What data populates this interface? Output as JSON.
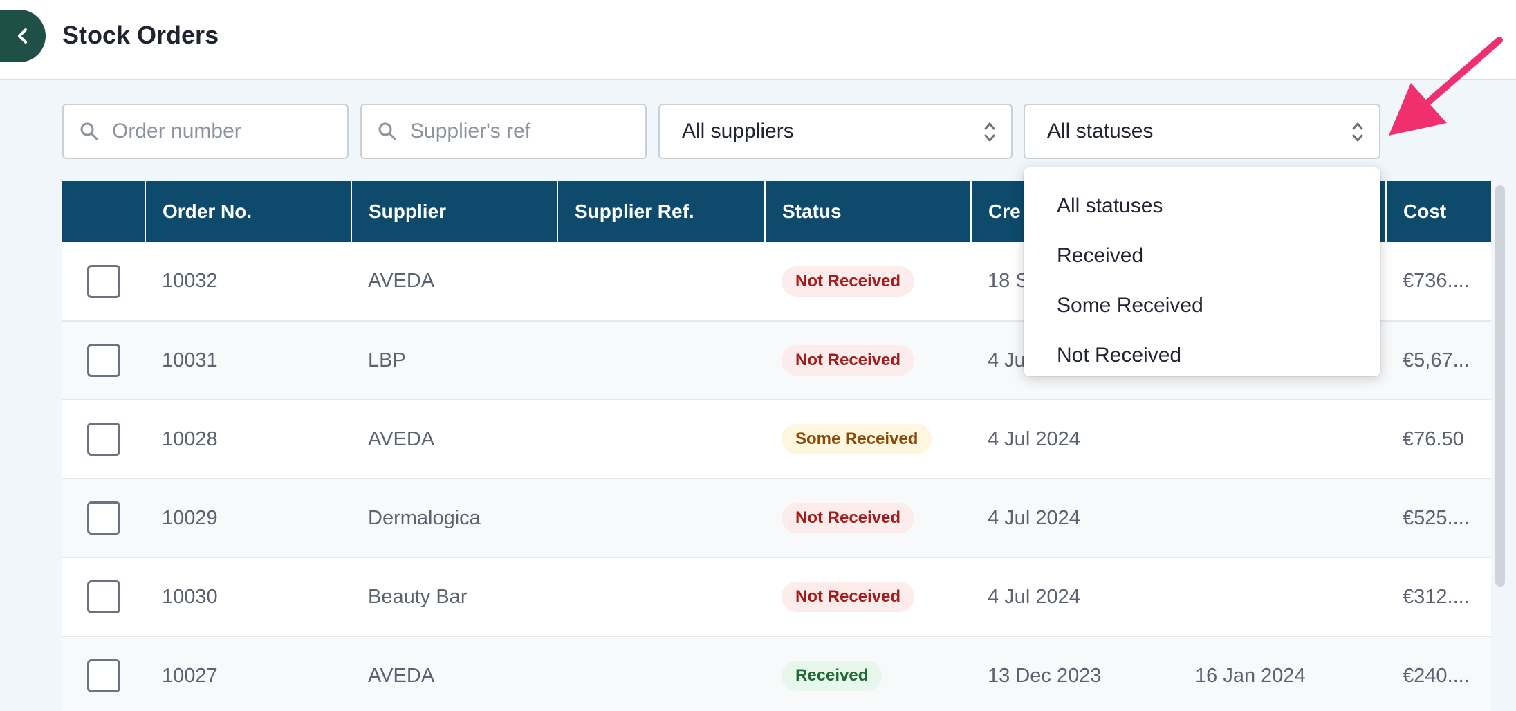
{
  "header": {
    "title": "Stock Orders"
  },
  "filters": {
    "order_number_placeholder": "Order number",
    "supplier_ref_placeholder": "Supplier's ref",
    "supplier_select_value": "All suppliers",
    "status_select_value": "All statuses"
  },
  "table": {
    "columns": [
      "",
      "Order No.",
      "Supplier",
      "Supplier Ref.",
      "Status",
      "Cre",
      "",
      "Cost"
    ],
    "rows": [
      {
        "order_no": "10032",
        "supplier": "AVEDA",
        "supplier_ref": "",
        "status": "Not Received",
        "created": "18 S",
        "received": "",
        "cost": "€736...."
      },
      {
        "order_no": "10031",
        "supplier": "LBP",
        "supplier_ref": "",
        "status": "Not Received",
        "created": "4 Ju",
        "received": "",
        "cost": "€5,67..."
      },
      {
        "order_no": "10028",
        "supplier": "AVEDA",
        "supplier_ref": "",
        "status": "Some Received",
        "created": "4 Jul 2024",
        "received": "",
        "cost": "€76.50"
      },
      {
        "order_no": "10029",
        "supplier": "Dermalogica",
        "supplier_ref": "",
        "status": "Not Received",
        "created": "4 Jul 2024",
        "received": "",
        "cost": "€525...."
      },
      {
        "order_no": "10030",
        "supplier": "Beauty Bar",
        "supplier_ref": "",
        "status": "Not Received",
        "created": "4 Jul 2024",
        "received": "",
        "cost": "€312...."
      },
      {
        "order_no": "10027",
        "supplier": "AVEDA",
        "supplier_ref": "",
        "status": "Received",
        "created": "13 Dec 2023",
        "received": "16 Jan 2024",
        "cost": "€240...."
      }
    ]
  },
  "status_dropdown": {
    "options": [
      "All statuses",
      "Received",
      "Some Received",
      "Not Received"
    ]
  },
  "colors": {
    "header_bg": "#0d4a6b",
    "back_button": "#1f5048",
    "annotation_arrow": "#f0306e"
  },
  "icons": {
    "back": "chevron-left-icon",
    "search": "search-icon",
    "select": "chevron-up-down-icon",
    "annotation": "arrow-annotation-icon"
  }
}
